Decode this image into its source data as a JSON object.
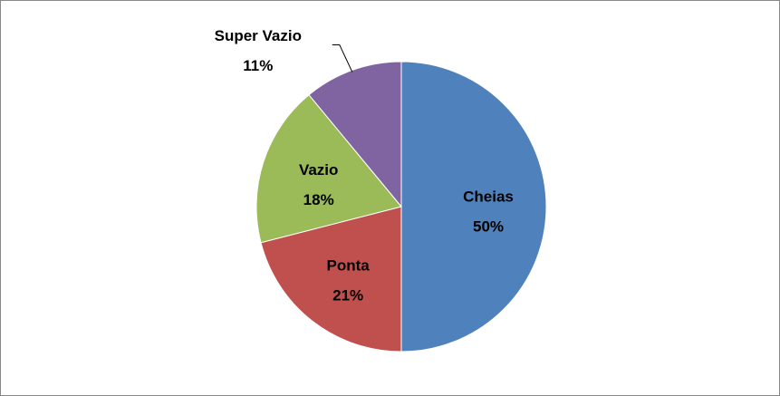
{
  "chart_data": {
    "type": "pie",
    "categories": [
      "Cheias",
      "Ponta",
      "Vazio",
      "Super Vazio"
    ],
    "values": [
      50,
      21,
      18,
      11
    ],
    "value_labels": [
      "50%",
      "21%",
      "18%",
      "11%"
    ],
    "colors": [
      "#4f81bd",
      "#c0504d",
      "#9bbb59",
      "#8064a2"
    ]
  }
}
